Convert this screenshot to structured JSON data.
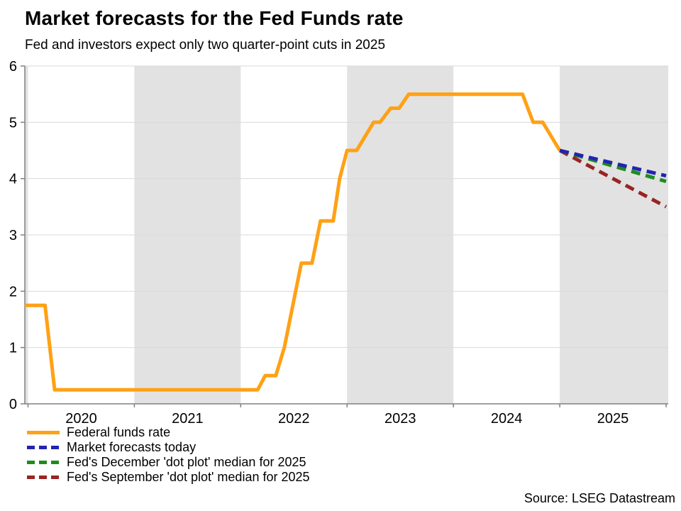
{
  "colors": {
    "band": "#E2E2E2",
    "gridline": "#D9D9D9",
    "axis": "#808080",
    "text": "#000000"
  },
  "source": "Source: LSEG Datastream",
  "chart_data": {
    "type": "line",
    "title": "Market forecasts for the Fed Funds rate",
    "subtitle": "Fed and investors expect only two quarter-point cuts in 2025",
    "legend_position": "bottom-left",
    "grid": "horizontal",
    "x_axis": {
      "range": [
        2019.97,
        2026.02
      ],
      "ticks": [
        2020,
        2021,
        2022,
        2023,
        2024,
        2025,
        2026
      ],
      "year_labels": [
        {
          "label": "2020",
          "pos": 2020.5
        },
        {
          "label": "2021",
          "pos": 2021.5
        },
        {
          "label": "2022",
          "pos": 2022.5
        },
        {
          "label": "2023",
          "pos": 2023.5
        },
        {
          "label": "2024",
          "pos": 2024.5
        },
        {
          "label": "2025",
          "pos": 2025.5
        }
      ]
    },
    "y_axis": {
      "range": [
        0,
        6
      ],
      "ticks": [
        0,
        1,
        2,
        3,
        4,
        5,
        6
      ]
    },
    "shaded_bands": [
      [
        2019.97,
        2020.0
      ],
      [
        2021.0,
        2022.0
      ],
      [
        2023.0,
        2024.0
      ],
      [
        2025.0,
        2026.02
      ]
    ],
    "series": [
      {
        "name": "Federal funds rate",
        "color": "#FFA115",
        "style": "solid",
        "points": [
          [
            2019.97,
            1.75
          ],
          [
            2020.16,
            1.75
          ],
          [
            2020.25,
            0.25
          ],
          [
            2022.16,
            0.25
          ],
          [
            2022.23,
            0.5
          ],
          [
            2022.33,
            0.5
          ],
          [
            2022.41,
            1.0
          ],
          [
            2022.57,
            2.5
          ],
          [
            2022.67,
            2.5
          ],
          [
            2022.75,
            3.25
          ],
          [
            2022.87,
            3.25
          ],
          [
            2022.93,
            4.0
          ],
          [
            2023.0,
            4.5
          ],
          [
            2023.09,
            4.5
          ],
          [
            2023.25,
            5.0
          ],
          [
            2023.31,
            5.0
          ],
          [
            2023.41,
            5.25
          ],
          [
            2023.49,
            5.25
          ],
          [
            2023.58,
            5.5
          ],
          [
            2024.65,
            5.5
          ],
          [
            2024.75,
            5.0
          ],
          [
            2024.84,
            5.0
          ],
          [
            2025.0,
            4.5
          ]
        ]
      },
      {
        "name": "Market forecasts today",
        "color": "#2323B0",
        "style": "dashed",
        "points": [
          [
            2025.0,
            4.5
          ],
          [
            2026.0,
            4.05
          ]
        ]
      },
      {
        "name": "Fed's December 'dot plot' median for 2025",
        "color": "#1F8B1F",
        "style": "dashed",
        "points": [
          [
            2025.0,
            4.5
          ],
          [
            2026.0,
            3.95
          ]
        ]
      },
      {
        "name": "Fed's September 'dot plot' median for 2025",
        "color": "#9A2323",
        "style": "dashed",
        "points": [
          [
            2025.0,
            4.5
          ],
          [
            2026.0,
            3.5
          ]
        ]
      }
    ]
  }
}
